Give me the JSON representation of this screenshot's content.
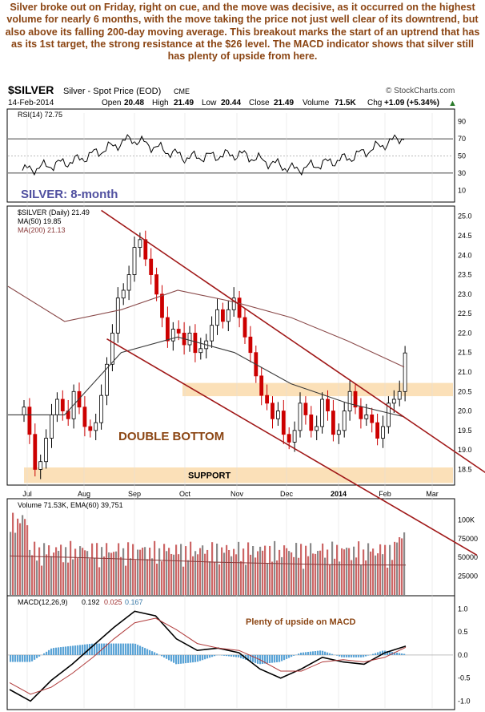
{
  "commentary": "Silver broke out on Friday, right on cue, and the move was decisive, as it occurred on the highest volume for nearly 6 months, with the move taking the price not just well clear of its downtrend, but also above its falling 200-day moving average. This breakout marks the start of an uptrend that has as its 1st target, the strong resistance at the $26 level. The MACD indicator shows that silver still has plenty of upside from here.",
  "header": {
    "symbol": "$SILVER",
    "description": "Silver - Spot Price (EOD)",
    "exchange": "CME",
    "watermark": "© StockCharts.com",
    "date": "14-Feb-2014",
    "open_label": "Open",
    "open": "20.48",
    "high_label": "High",
    "high": "21.49",
    "low_label": "Low",
    "low": "20.44",
    "close_label": "Close",
    "close": "21.49",
    "volume_label": "Volume",
    "volume": "71.5K",
    "chg_label": "Chg",
    "chg": "+1.09 (+5.34%)",
    "chg_arrow": "▲"
  },
  "colors": {
    "up_candle": "#000000",
    "down_candle": "#cc0000",
    "trend_channel": "#a01818",
    "ma50": "#3a3a3a",
    "ma200": "#8a4a4a",
    "zone_fill": "#fbe0b8",
    "annotation": "#8B4513",
    "rsi_label": "#5050a0",
    "volume_up": "#8a8a8a",
    "volume_down": "#cc6666",
    "macd_hist": "#5ba4d6"
  },
  "chart_data": [
    {
      "type": "line",
      "panel": "rsi",
      "legend": "RSI(14) 72.75",
      "ylim": [
        0,
        100
      ],
      "yticks": [
        10,
        30,
        50,
        70,
        90
      ],
      "reference_lines": [
        30,
        70
      ],
      "annotation": "SILVER: 8-month",
      "x": [
        "Jul",
        "Aug",
        "Sep",
        "Oct",
        "Nov",
        "Dec",
        "2014",
        "Feb"
      ],
      "values": [
        33,
        45,
        70,
        48,
        52,
        34,
        48,
        72.75
      ]
    },
    {
      "type": "candlestick",
      "panel": "price",
      "legend": "$SILVER (Daily) 21.49",
      "ylim": [
        18.2,
        25.2
      ],
      "yticks": [
        18.5,
        19.0,
        19.5,
        20.0,
        20.5,
        21.0,
        21.5,
        22.0,
        22.5,
        23.0,
        23.5,
        24.0,
        24.5,
        25.0
      ],
      "x_labels": [
        "Jul",
        "Aug",
        "Sep",
        "Oct",
        "Nov",
        "Dec",
        "2014",
        "Feb",
        "Mar"
      ],
      "series": [
        {
          "name": "MA(50) 19.85",
          "values": [
            19.9,
            19.9,
            21.5,
            21.9,
            21.5,
            20.7,
            20.2,
            19.85
          ]
        },
        {
          "name": "MA(200) 21.13",
          "values": [
            23.2,
            22.3,
            22.6,
            23.1,
            22.8,
            22.4,
            21.8,
            21.13
          ]
        }
      ],
      "price_path": [
        [
          0,
          20.1
        ],
        [
          1,
          19.4
        ],
        [
          2,
          18.5
        ],
        [
          3,
          18.7
        ],
        [
          4,
          19.3
        ],
        [
          5,
          19.9
        ],
        [
          6,
          20.3
        ],
        [
          7,
          20.0
        ],
        [
          8,
          19.8
        ],
        [
          9,
          20.5
        ],
        [
          10,
          20.1
        ],
        [
          11,
          19.6
        ],
        [
          12,
          19.5
        ],
        [
          13,
          19.7
        ],
        [
          14,
          20.4
        ],
        [
          15,
          21.2
        ],
        [
          16,
          22.0
        ],
        [
          17,
          22.9
        ],
        [
          18,
          23.1
        ],
        [
          19,
          23.5
        ],
        [
          20,
          24.2
        ],
        [
          21,
          24.4
        ],
        [
          22,
          23.9
        ],
        [
          23,
          23.5
        ],
        [
          24,
          23.0
        ],
        [
          25,
          22.4
        ],
        [
          26,
          21.8
        ],
        [
          27,
          22.1
        ],
        [
          28,
          22.0
        ],
        [
          29,
          21.7
        ],
        [
          30,
          22.0
        ],
        [
          31,
          21.5
        ],
        [
          32,
          21.6
        ],
        [
          33,
          21.8
        ],
        [
          34,
          22.2
        ],
        [
          35,
          22.6
        ],
        [
          36,
          22.3
        ],
        [
          37,
          22.6
        ],
        [
          38,
          22.9
        ],
        [
          39,
          22.4
        ],
        [
          40,
          21.9
        ],
        [
          41,
          21.5
        ],
        [
          42,
          20.9
        ],
        [
          43,
          20.4
        ],
        [
          44,
          20.2
        ],
        [
          45,
          19.8
        ],
        [
          46,
          20.0
        ],
        [
          47,
          19.4
        ],
        [
          48,
          19.2
        ],
        [
          49,
          19.5
        ],
        [
          50,
          20.2
        ],
        [
          51,
          19.9
        ],
        [
          52,
          19.5
        ],
        [
          53,
          19.6
        ],
        [
          54,
          20.3
        ],
        [
          55,
          20.0
        ],
        [
          56,
          19.4
        ],
        [
          57,
          19.5
        ],
        [
          58,
          20.0
        ],
        [
          59,
          20.5
        ],
        [
          60,
          20.1
        ],
        [
          61,
          19.8
        ],
        [
          62,
          19.9
        ],
        [
          63,
          19.7
        ],
        [
          64,
          19.3
        ],
        [
          65,
          19.6
        ],
        [
          66,
          20.2
        ],
        [
          67,
          20.3
        ],
        [
          68,
          20.5
        ],
        [
          69,
          21.49
        ]
      ],
      "trendlines": [
        {
          "name": "upper-channel",
          "points": [
            [
              14,
              25.15
            ],
            [
              92,
              17.6
            ]
          ]
        },
        {
          "name": "lower-channel",
          "points": [
            [
              15,
              21.85
            ],
            [
              82,
              16.3
            ]
          ]
        }
      ],
      "zones": [
        {
          "label": "",
          "y": [
            20.38,
            20.72
          ]
        },
        {
          "label": "SUPPORT",
          "y": [
            18.15,
            18.55
          ]
        }
      ],
      "annotation": "DOUBLE BOTTOM"
    },
    {
      "type": "bar",
      "panel": "volume",
      "legend": "Volume 71.53K, EMA(60) 39,751",
      "ylim": [
        0,
        125000
      ],
      "yticks_labels": [
        "25000",
        "50000",
        "75000",
        "100K"
      ],
      "yticks": [
        25000,
        50000,
        75000,
        100000
      ],
      "series": [
        {
          "name": "EMA(60)",
          "values": [
            52000,
            50000,
            47000,
            44000,
            42000,
            40000,
            39751
          ]
        }
      ]
    },
    {
      "type": "line",
      "panel": "macd",
      "legend_name": "MACD(12,26,9)",
      "legend_values": [
        "0.192",
        "0.025",
        "0.167"
      ],
      "ylim": [
        -1.15,
        1.2
      ],
      "yticks": [
        -1.0,
        -0.5,
        0.0,
        0.5,
        1.0
      ],
      "annotation": "Plenty of upside on MACD",
      "series": [
        {
          "name": "MACD",
          "values": [
            -0.75,
            -1.0,
            -0.55,
            -0.2,
            0.2,
            0.6,
            0.95,
            0.85,
            0.35,
            0.1,
            0.15,
            0.05,
            -0.3,
            -0.5,
            -0.3,
            -0.05,
            -0.15,
            -0.2,
            0.05,
            0.192
          ]
        },
        {
          "name": "Signal",
          "values": [
            -0.6,
            -0.85,
            -0.7,
            -0.4,
            -0.05,
            0.35,
            0.7,
            0.8,
            0.55,
            0.25,
            0.15,
            0.1,
            -0.1,
            -0.35,
            -0.35,
            -0.15,
            -0.1,
            -0.15,
            -0.05,
            0.167
          ]
        },
        {
          "name": "Histogram",
          "values": [
            -0.15,
            -0.15,
            0.15,
            0.2,
            0.25,
            0.25,
            0.25,
            0.05,
            -0.2,
            -0.15,
            0.0,
            -0.05,
            -0.2,
            -0.15,
            0.05,
            0.1,
            -0.05,
            -0.05,
            0.1,
            0.025
          ]
        }
      ]
    }
  ]
}
